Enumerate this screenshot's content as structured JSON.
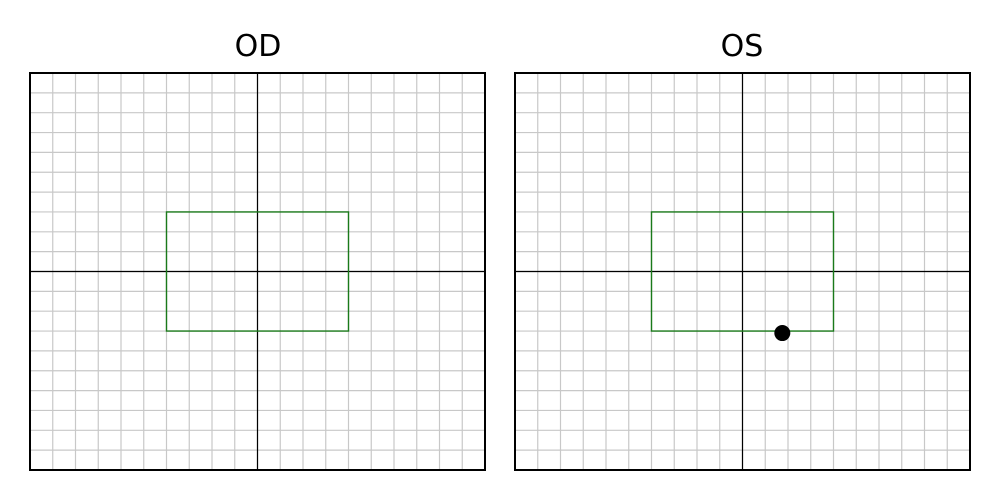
{
  "chart_data": [
    {
      "type": "scatter",
      "title": "OD",
      "xlim": [
        -10,
        10
      ],
      "ylim": [
        -10,
        10
      ],
      "grid": true,
      "grid_step": 1,
      "axes_lines": true,
      "grid_color": "#c8c8c8",
      "rect": {
        "x0": -4,
        "x1": 4,
        "y0": -3,
        "y1": 3,
        "color": "#1a7a1a"
      },
      "points": []
    },
    {
      "type": "scatter",
      "title": "OS",
      "xlim": [
        -10,
        10
      ],
      "ylim": [
        -10,
        10
      ],
      "grid": true,
      "grid_step": 1,
      "axes_lines": true,
      "grid_color": "#c8c8c8",
      "rect": {
        "x0": -4,
        "x1": 4,
        "y0": -3,
        "y1": 3,
        "color": "#1a7a1a"
      },
      "points": [
        {
          "x": 1.75,
          "y": -3.1,
          "color": "#000000"
        }
      ]
    }
  ]
}
